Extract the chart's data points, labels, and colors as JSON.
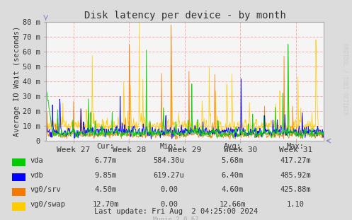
{
  "title": "Disk latency per device - by month",
  "ylabel": "Average IO Wait (seconds)",
  "bg_color": "#DCDCDC",
  "plot_bg_color": "#F5F5F5",
  "grid_color": "#FF9999",
  "ylim": [
    0,
    80
  ],
  "ytick_labels": [
    "0",
    "10 m",
    "20 m",
    "30 m",
    "40 m",
    "50 m",
    "60 m",
    "70 m",
    "80 m"
  ],
  "week_labels": [
    "Week 27",
    "Week 28",
    "Week 29",
    "Week 30",
    "Week 31"
  ],
  "right_label": "RRDTOOL / TOBI OETIKER",
  "legend": [
    {
      "label": "vda",
      "color": "#00CC00"
    },
    {
      "label": "vdb",
      "color": "#0000FF"
    },
    {
      "label": "vg0/srv",
      "color": "#F57900"
    },
    {
      "label": "vg0/swap",
      "color": "#FFCC00"
    }
  ],
  "stats_header": [
    "Cur:",
    "Min:",
    "Avg:",
    "Max:"
  ],
  "stats": [
    [
      "6.77m",
      "584.30u",
      "5.68m",
      "417.27m"
    ],
    [
      "9.85m",
      "619.27u",
      "6.40m",
      "485.92m"
    ],
    [
      "4.50m",
      "0.00",
      "4.60m",
      "425.88m"
    ],
    [
      "12.70m",
      "0.00",
      "12.66m",
      "1.10"
    ]
  ],
  "last_update": "Last update: Fri Aug  2 04:25:00 2024",
  "munin_version": "Munin 2.0.67",
  "n_points": 700,
  "seed": 42
}
